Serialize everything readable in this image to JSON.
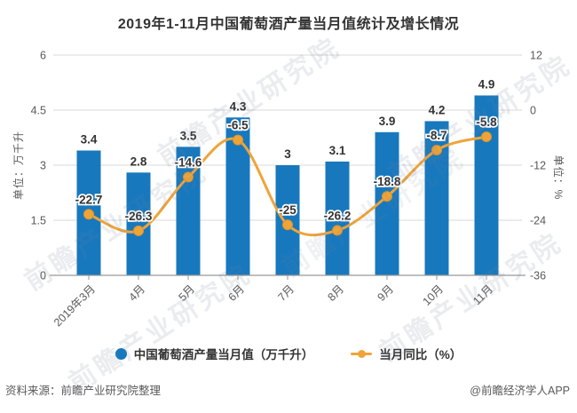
{
  "title": "2019年1-11月中国葡萄酒产量当月值统计及增长情况",
  "watermark": {
    "text": "前瞻产业研究院"
  },
  "footer": {
    "source": "资料来源：前瞻产业研究院整理",
    "credit": "@前瞻经济学人APP"
  },
  "colors": {
    "bar": "#1878BE",
    "line": "#EFA43A",
    "line_marker_edge": "#DE9426",
    "grid": "#D8D8D8",
    "axis_line": "#999999",
    "axis_text": "#595959",
    "bar_label": "#333333",
    "line_label": "#333333",
    "title_text": "#333333"
  },
  "chart_data": {
    "type": "combo: bar + line",
    "categories": [
      "2019年3月",
      "4月",
      "5月",
      "6月",
      "7月",
      "8月",
      "9月",
      "10月",
      "11月"
    ],
    "series": [
      {
        "name": "中国葡萄酒产量当月值（万千升）",
        "type": "bar",
        "y_axis": "left",
        "values": [
          3.4,
          2.8,
          3.5,
          4.3,
          3,
          3.1,
          3.9,
          4.2,
          4.9
        ]
      },
      {
        "name": "当月同比（%）",
        "type": "line",
        "y_axis": "right",
        "values": [
          -22.7,
          -26.3,
          -14.6,
          -6.5,
          -25,
          -26.2,
          -18.8,
          -8.7,
          -5.8
        ]
      }
    ],
    "left_axis": {
      "name": "单位：万千升",
      "min": 0,
      "max": 6,
      "ticks": [
        0,
        1.5,
        3,
        4.5,
        6
      ]
    },
    "right_axis": {
      "name": "单位：%",
      "min": -36,
      "max": 12,
      "ticks": [
        -36,
        -24,
        -12,
        0,
        12
      ]
    },
    "grid": true,
    "legend_position": "bottom"
  }
}
